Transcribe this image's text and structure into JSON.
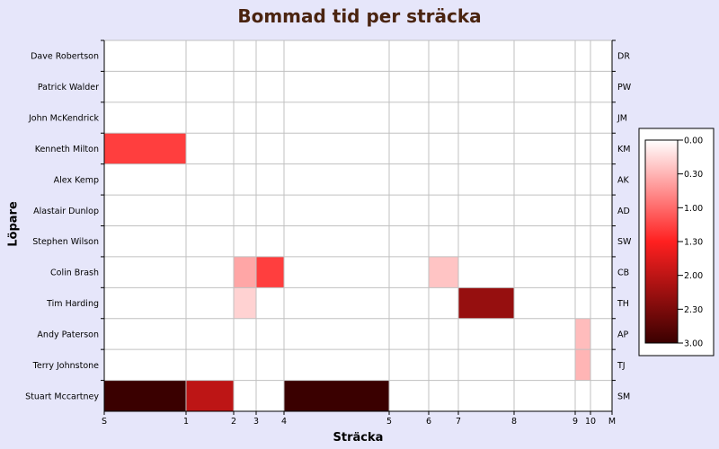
{
  "chart_data": {
    "type": "heatmap",
    "title": "Bommad tid per sträcka",
    "xlabel": "Sträcka",
    "ylabel": "Löpare",
    "x_ticks": [
      {
        "label": "S",
        "value": 0
      },
      {
        "label": "1",
        "value": 1
      },
      {
        "label": "2",
        "value": 2
      },
      {
        "label": "3",
        "value": 3
      },
      {
        "label": "4",
        "value": 4
      },
      {
        "label": "5",
        "value": 5
      },
      {
        "label": "6",
        "value": 6
      },
      {
        "label": "7",
        "value": 7
      },
      {
        "label": "8",
        "value": 8
      },
      {
        "label": "9",
        "value": 9
      },
      {
        "label": "10",
        "value": 10
      },
      {
        "label": "M",
        "value": 11
      }
    ],
    "rows": [
      {
        "name": "Dave Robertson",
        "abbr": "DR",
        "cells": []
      },
      {
        "name": "Patrick Walder",
        "abbr": "PW",
        "cells": []
      },
      {
        "name": "John McKendrick",
        "abbr": "JM",
        "cells": []
      },
      {
        "name": "Kenneth Milton",
        "abbr": "KM",
        "cells": [
          {
            "from": 0,
            "to": 1,
            "value": 1.3
          }
        ]
      },
      {
        "name": "Alex Kemp",
        "abbr": "AK",
        "cells": []
      },
      {
        "name": "Alastair Dunlop",
        "abbr": "AD",
        "cells": []
      },
      {
        "name": "Stephen Wilson",
        "abbr": "SW",
        "cells": []
      },
      {
        "name": "Colin Brash",
        "abbr": "CB",
        "cells": [
          {
            "from": 2,
            "to": 3,
            "value": 0.6
          },
          {
            "from": 3,
            "to": 4,
            "value": 1.3
          },
          {
            "from": 6,
            "to": 7,
            "value": 0.4
          }
        ]
      },
      {
        "name": "Tim Harding",
        "abbr": "TH",
        "cells": [
          {
            "from": 2,
            "to": 3,
            "value": 0.3
          },
          {
            "from": 7,
            "to": 8,
            "value": 2.3
          }
        ]
      },
      {
        "name": "Andy Paterson",
        "abbr": "AP",
        "cells": [
          {
            "from": 9,
            "to": 10,
            "value": 0.45
          }
        ]
      },
      {
        "name": "Terry Johnstone",
        "abbr": "TJ",
        "cells": [
          {
            "from": 9,
            "to": 10,
            "value": 0.5
          }
        ]
      },
      {
        "name": "Stuart Mccartney",
        "abbr": "SM",
        "cells": [
          {
            "from": 0,
            "to": 1,
            "value": 3.0
          },
          {
            "from": 1,
            "to": 2,
            "value": 2.0
          },
          {
            "from": 4,
            "to": 5,
            "value": 3.0
          }
        ]
      }
    ],
    "colorbar": {
      "min": 0,
      "max": 3,
      "tick_labels": [
        "0.00",
        "0.30",
        "1.00",
        "1.30",
        "2.00",
        "2.30",
        "3.00"
      ],
      "colors": [
        "#ffffff",
        "#ff2020",
        "#3a0000"
      ]
    },
    "grid": true
  }
}
